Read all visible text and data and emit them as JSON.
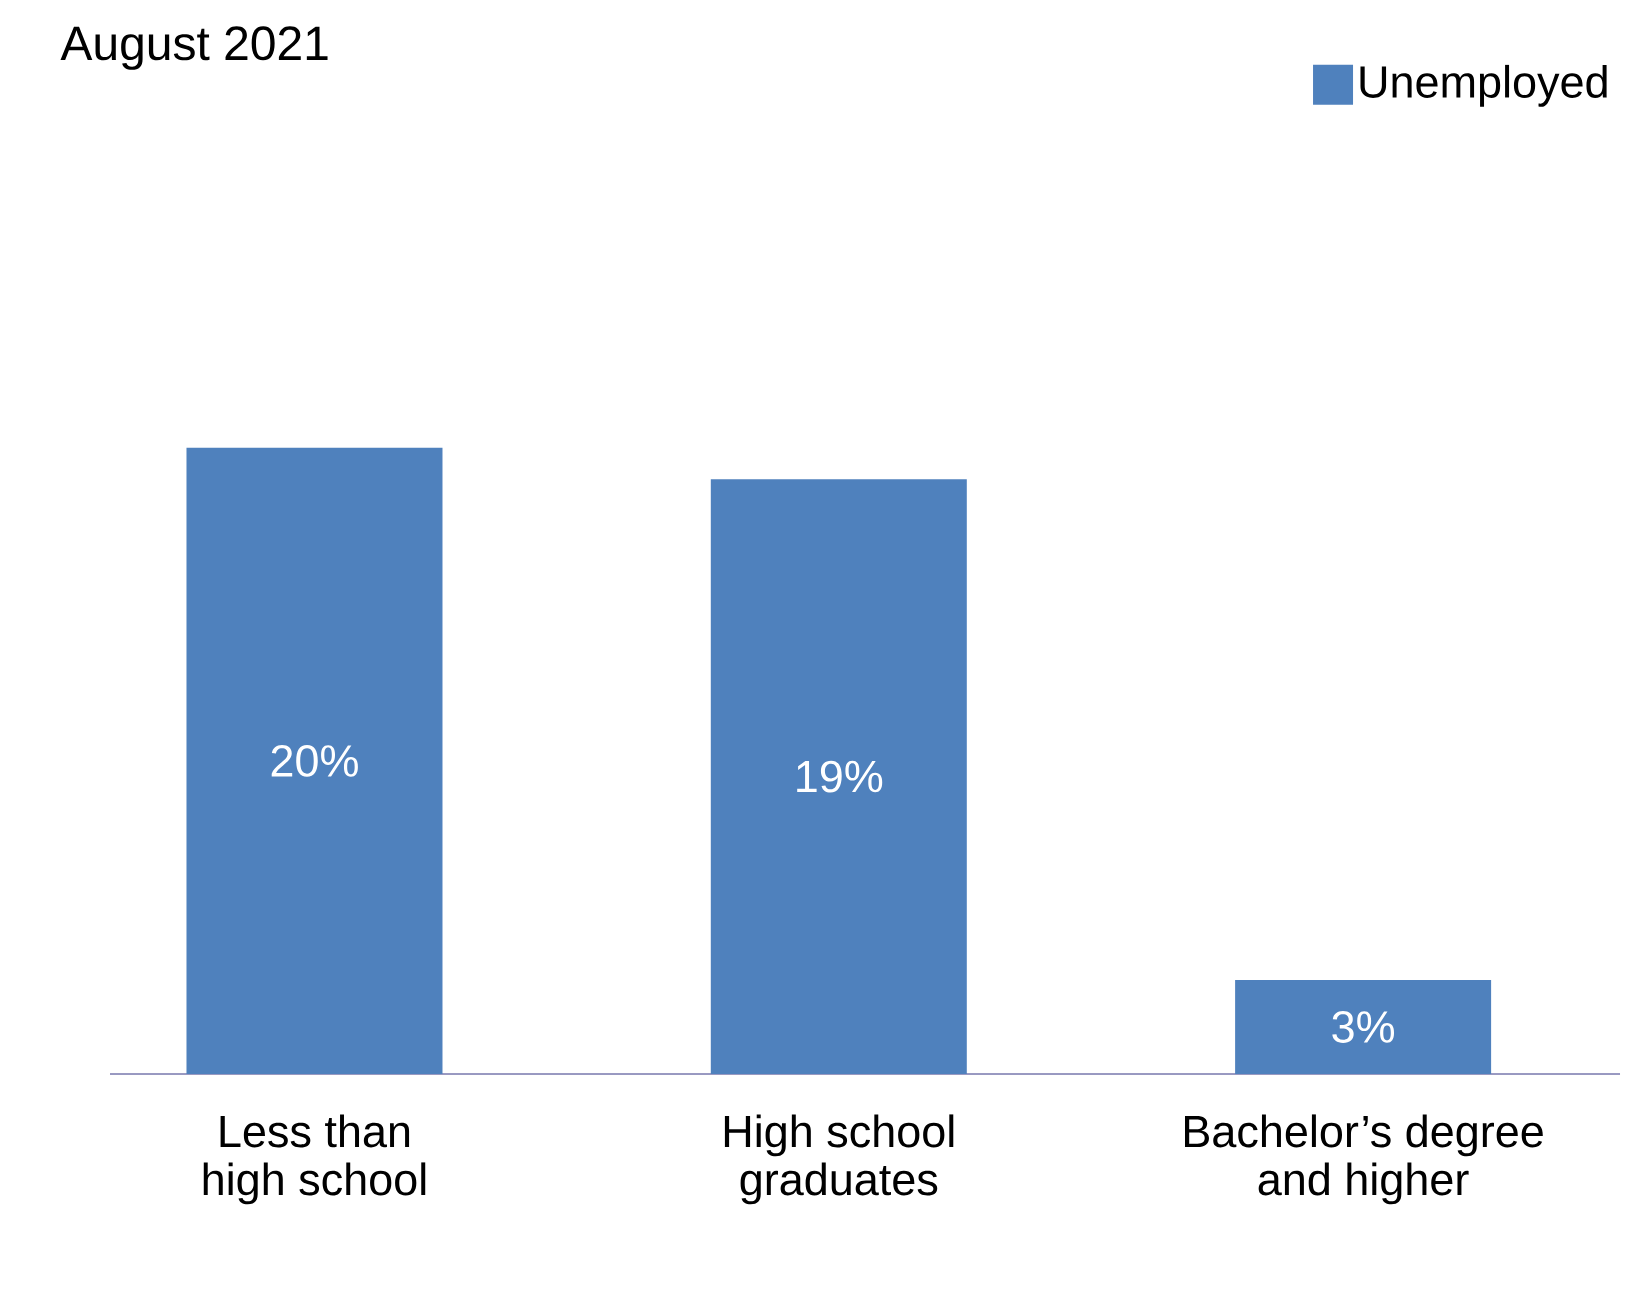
{
  "chart_data": {
    "type": "bar",
    "title": "August 2021",
    "categories": [
      "Less than high school",
      "High school graduates",
      "Bachelor’s degree and higher"
    ],
    "series": [
      {
        "name": "Unemployed",
        "color": "#4f81bd",
        "values": [
          20,
          19,
          3
        ],
        "value_labels": [
          "20%",
          "19%",
          "3%"
        ]
      }
    ],
    "legend": "top right"
  }
}
